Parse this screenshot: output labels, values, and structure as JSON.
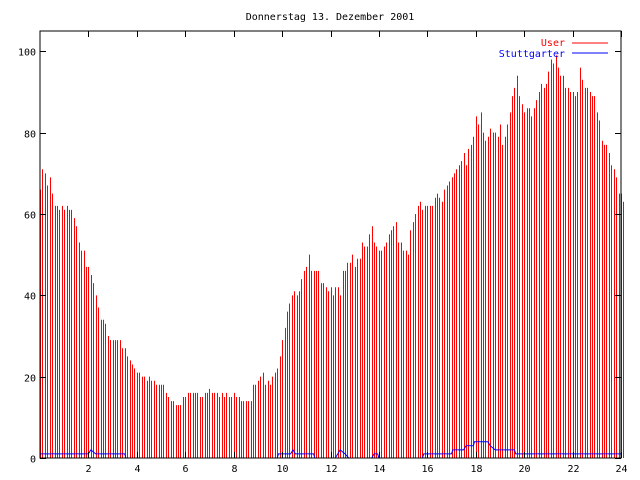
{
  "chart_data": {
    "type": "bar",
    "title": "Donnerstag 13. Dezember 2001",
    "xlabel": "",
    "ylabel": "",
    "xlim": [
      0,
      24
    ],
    "ylim": [
      0,
      105
    ],
    "xticks": [
      2,
      4,
      6,
      8,
      10,
      12,
      14,
      16,
      18,
      20,
      22,
      24
    ],
    "xtick_labels": [
      "2",
      "4",
      "6",
      "8",
      "10",
      "12",
      "14",
      "16",
      "18",
      "20",
      "22",
      "24"
    ],
    "yticks": [
      0,
      20,
      40,
      60,
      80,
      100
    ],
    "ytick_labels": [
      "0",
      "20",
      "40",
      "60",
      "80",
      "100"
    ],
    "legend_position": "top-right",
    "grid": false,
    "series": [
      {
        "name": "User",
        "style": "impulses",
        "color": "#ff0000",
        "x_start": 0,
        "x_step": 0.1,
        "values": [
          66,
          71,
          70,
          67,
          69,
          65,
          62,
          62,
          61,
          62,
          61,
          62,
          61,
          61,
          59,
          57,
          53,
          51,
          51,
          47,
          47,
          45,
          43,
          40,
          37,
          34,
          34,
          33,
          30,
          29,
          29,
          29,
          29,
          29,
          27,
          27,
          25,
          24,
          23,
          22,
          21,
          21,
          20,
          20,
          19,
          20,
          19,
          19,
          18,
          18,
          18,
          18,
          16,
          15,
          14,
          14,
          13,
          13,
          13,
          15,
          15,
          16,
          16,
          16,
          16,
          16,
          15,
          15,
          16,
          16,
          17,
          16,
          16,
          16,
          15,
          16,
          15,
          16,
          15,
          15,
          16,
          15,
          15,
          14,
          14,
          14,
          14,
          14,
          18,
          18,
          19,
          20,
          21,
          18,
          19,
          18,
          20,
          21,
          22,
          25,
          29,
          32,
          36,
          38,
          40,
          41,
          40,
          41,
          44,
          46,
          47,
          50,
          46,
          46,
          46,
          46,
          43,
          43,
          42,
          41,
          42,
          40,
          42,
          42,
          40,
          46,
          46,
          48,
          48,
          50,
          47,
          49,
          49,
          53,
          52,
          52,
          55,
          57,
          53,
          52,
          51,
          51,
          52,
          53,
          55,
          56,
          57,
          58,
          53,
          53,
          51,
          51,
          50,
          56,
          58,
          60,
          62,
          63,
          61,
          62,
          62,
          62,
          62,
          64,
          65,
          64,
          63,
          66,
          67,
          68,
          69,
          70,
          71,
          72,
          73,
          75,
          72,
          76,
          77,
          79,
          84,
          82,
          85,
          80,
          78,
          79,
          81,
          80,
          80,
          79,
          82,
          77,
          79,
          82,
          85,
          89,
          91,
          94,
          89,
          87,
          85,
          86,
          86,
          84,
          86,
          88,
          90,
          92,
          91,
          92,
          95,
          98,
          97,
          99,
          96,
          94,
          94,
          91,
          91,
          90,
          90,
          89,
          90,
          96,
          93,
          91,
          91,
          90,
          89,
          89,
          85,
          83,
          78,
          77,
          77,
          75,
          72,
          71,
          69,
          65,
          65,
          63
        ]
      },
      {
        "name": "Stuttgarter",
        "style": "line",
        "color": "#0000ff",
        "points": [
          [
            0,
            1
          ],
          [
            2,
            1
          ],
          [
            2.1,
            2
          ],
          [
            2.3,
            1
          ],
          [
            3.5,
            1
          ],
          [
            3.55,
            0
          ],
          [
            9.8,
            0
          ],
          [
            9.85,
            1
          ],
          [
            10.35,
            1
          ],
          [
            10.45,
            2
          ],
          [
            10.55,
            1
          ],
          [
            11.3,
            1
          ],
          [
            11.35,
            0
          ],
          [
            12.2,
            0
          ],
          [
            12.3,
            1
          ],
          [
            12.4,
            2
          ],
          [
            12.6,
            1
          ],
          [
            12.75,
            0
          ],
          [
            13.7,
            0
          ],
          [
            13.8,
            1
          ],
          [
            13.95,
            1
          ],
          [
            14.0,
            0
          ],
          [
            15.8,
            0
          ],
          [
            15.85,
            1
          ],
          [
            17.0,
            1
          ],
          [
            17.05,
            2
          ],
          [
            17.5,
            2
          ],
          [
            17.6,
            3
          ],
          [
            17.9,
            3
          ],
          [
            17.95,
            4
          ],
          [
            18.5,
            4
          ],
          [
            18.6,
            3
          ],
          [
            18.8,
            2
          ],
          [
            19.6,
            2
          ],
          [
            19.65,
            1
          ],
          [
            24,
            1
          ]
        ]
      }
    ]
  }
}
